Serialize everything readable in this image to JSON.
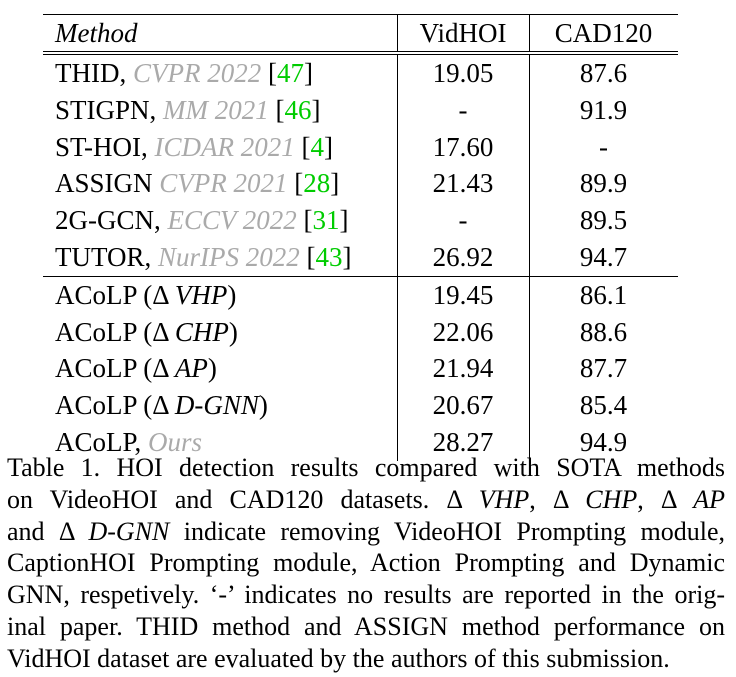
{
  "table": {
    "headers": {
      "method": "Method",
      "vidhoi": "VidHOI",
      "cad120": "CAD120"
    },
    "sota_rows": [
      {
        "name": "THID,",
        "venue": "CVPR 2022",
        "ref": "47",
        "vidhoi": "19.05",
        "cad120": "87.6"
      },
      {
        "name": "STIGPN,",
        "venue": "MM 2021",
        "ref": "46",
        "vidhoi": "-",
        "cad120": "91.9"
      },
      {
        "name": "ST-HOI,",
        "venue": "ICDAR 2021",
        "ref": "4",
        "vidhoi": "17.60",
        "cad120": "-"
      },
      {
        "name": "ASSIGN",
        "venue": "CVPR 2021",
        "ref": "28",
        "vidhoi": "21.43",
        "cad120": "89.9"
      },
      {
        "name": "2G-GCN,",
        "venue": "ECCV 2022",
        "ref": "31",
        "vidhoi": "-",
        "cad120": "89.5"
      },
      {
        "name": "TUTOR,",
        "venue": "NurIPS 2022",
        "ref": "43",
        "vidhoi": "26.92",
        "cad120": "94.7"
      }
    ],
    "ablation_rows": [
      {
        "prefix": "ACoLP (Δ ",
        "variant": "VHP",
        "suffix": ")",
        "vidhoi": "19.45",
        "cad120": "86.1"
      },
      {
        "prefix": "ACoLP (Δ ",
        "variant": "CHP",
        "suffix": ")",
        "vidhoi": "22.06",
        "cad120": "88.6"
      },
      {
        "prefix": "ACoLP (Δ ",
        "variant": "AP",
        "suffix": ")",
        "vidhoi": "21.94",
        "cad120": "87.7"
      },
      {
        "prefix": "ACoLP (Δ ",
        "variant": "D-GNN",
        "suffix": ")",
        "vidhoi": "20.67",
        "cad120": "85.4"
      }
    ],
    "ours_row": {
      "name": "ACoLP,",
      "tag": "Ours",
      "vidhoi": "28.27",
      "cad120": "94.9"
    }
  },
  "caption": {
    "l1": "Table 1. HOI detection results compared with SOTA methods",
    "l2a": "on VideoHOI and CAD120 datasets.  Δ ",
    "l2b": "VHP",
    "l2c": ", Δ ",
    "l2d": "CHP",
    "l2e": ", Δ ",
    "l2f": "AP",
    "l3a": "and Δ ",
    "l3b": "D-GNN",
    "l3c": " indicate removing VideoHOI Prompting module,",
    "l4": "CaptionHOI Prompting module, Action Prompting and Dynamic",
    "l5": "GNN, respetively. ‘-’ indicates no results are reported in the orig-",
    "l6": "inal paper. THID method and ASSIGN method performance on",
    "l7": "VidHOI dataset are evaluated by the authors of this submission."
  }
}
